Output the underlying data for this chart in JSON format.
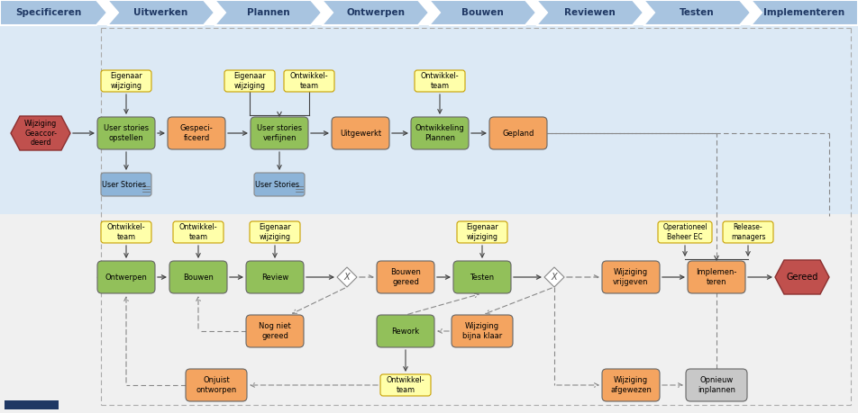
{
  "header_items": [
    "Specificeren",
    "Uitwerken",
    "Plannen",
    "Ontwerpen",
    "Bouwen",
    "Reviewen",
    "Testen",
    "Implementeren"
  ],
  "header_bg": "#a8c4e0",
  "header_text_color": "#1f3864",
  "bg_color": "#ffffff",
  "upper_lane_bg": "#dce9f5",
  "lower_lane_bg": "#efefef",
  "process_green": "#92c05a",
  "process_orange": "#f4a460",
  "process_red": "#c0504d",
  "process_blue": "#8db4d8",
  "process_gray": "#c8c8c8",
  "label_yellow": "#ffffaa",
  "label_border": "#c8a000",
  "arrow_color": "#444444",
  "dashed_color": "#888888",
  "border_color": "#aaaaaa"
}
